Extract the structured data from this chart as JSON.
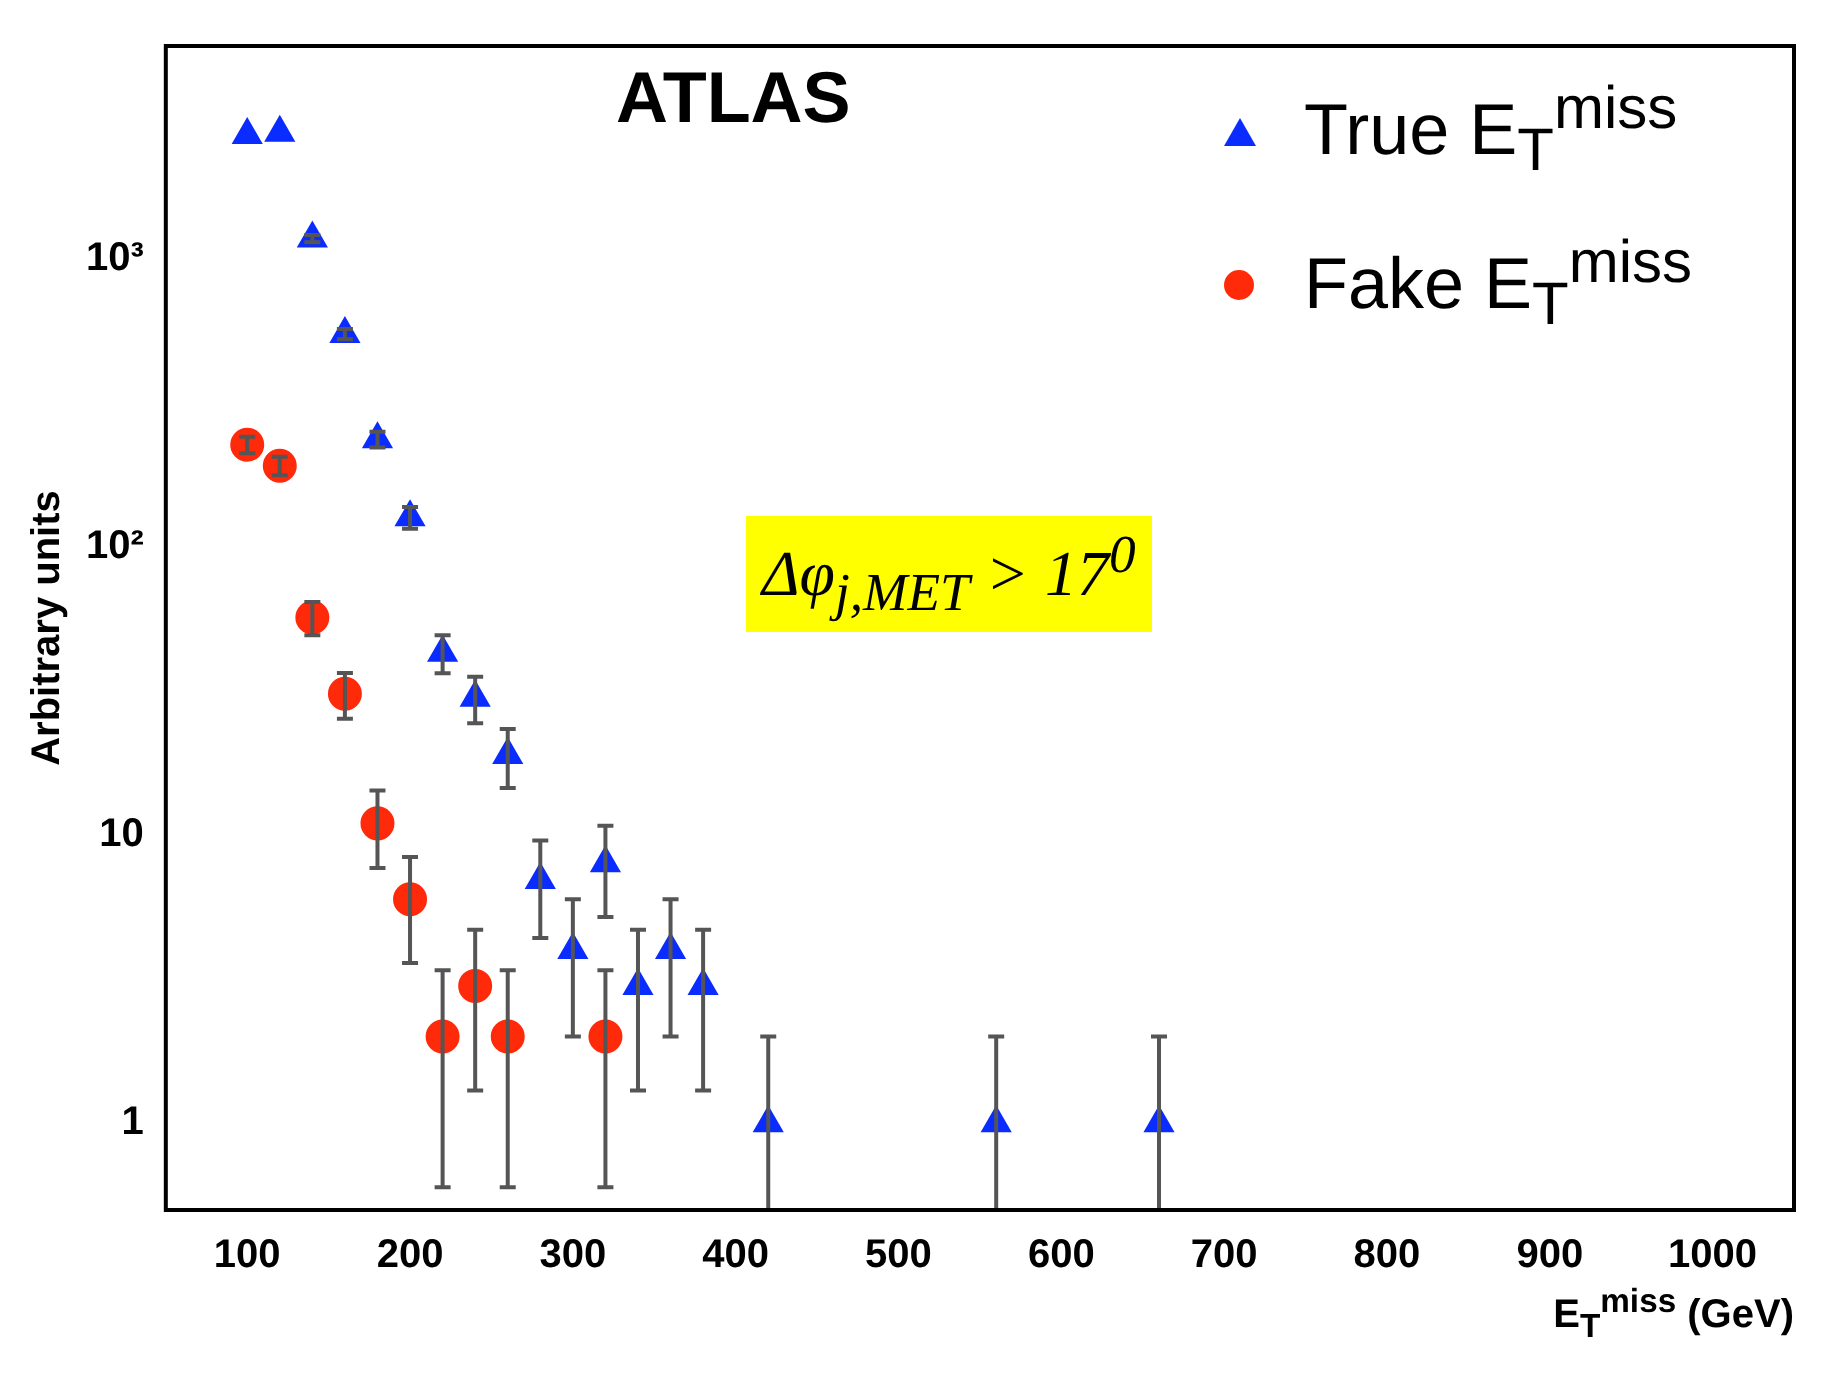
{
  "chart_data": {
    "type": "scatter",
    "xlabel": "E$_{T}$$^{miss}$ (GeV)",
    "ylabel": "Arbitrary units",
    "annotations": [
      "ATLAS",
      "Δφ$_{j,MET}$ > 17$^{0}$"
    ],
    "log": "y",
    "grid": false,
    "legend": "top right",
    "xlim": [
      50,
      1050
    ],
    "xticks": [
      100,
      200,
      300,
      400,
      500,
      600,
      700,
      800,
      900,
      1000
    ],
    "ylim": [
      0.5,
      5500
    ],
    "yticks": [
      1,
      10,
      {
        "value": 100,
        "label": "10²"
      },
      {
        "value": 1000,
        "label": "10³"
      }
    ],
    "series": [
      {
        "name": "True E$_{T}$$^{miss}$",
        "color": "#0a2cff",
        "marker": "triangle",
        "x": [
          100,
          120,
          140,
          160,
          180,
          200,
          220,
          240,
          260,
          280,
          300,
          320,
          340,
          360,
          380,
          420,
          560,
          660
        ],
        "values": [
          2700,
          2750,
          1180,
          550,
          237,
          127,
          43,
          30,
          19,
          7,
          4,
          8,
          3,
          4,
          3,
          1,
          1,
          1
        ],
        "errors": [
          null,
          null,
          34,
          23,
          15,
          11,
          6.5,
          5.5,
          4.4,
          2.6,
          2,
          2.8,
          1.7,
          2,
          1.7,
          [
            0.5,
            2
          ],
          [
            0.5,
            2
          ],
          [
            0.5,
            2
          ]
        ]
      },
      {
        "name": "Fake E$_{T}$$^{miss}$",
        "color": "#ff2a0a",
        "marker": "circle",
        "x": [
          100,
          120,
          140,
          160,
          180,
          200,
          220,
          240,
          260,
          320
        ],
        "values": [
          227,
          192,
          57,
          31,
          11,
          6,
          2,
          3,
          2,
          2
        ],
        "errors": [
          15,
          14,
          7.5,
          5.6,
          3.3,
          2.4,
          [
            0.6,
            3.4
          ],
          1.7,
          [
            0.6,
            3.4
          ],
          [
            0.6,
            3.4
          ]
        ]
      }
    ]
  }
}
